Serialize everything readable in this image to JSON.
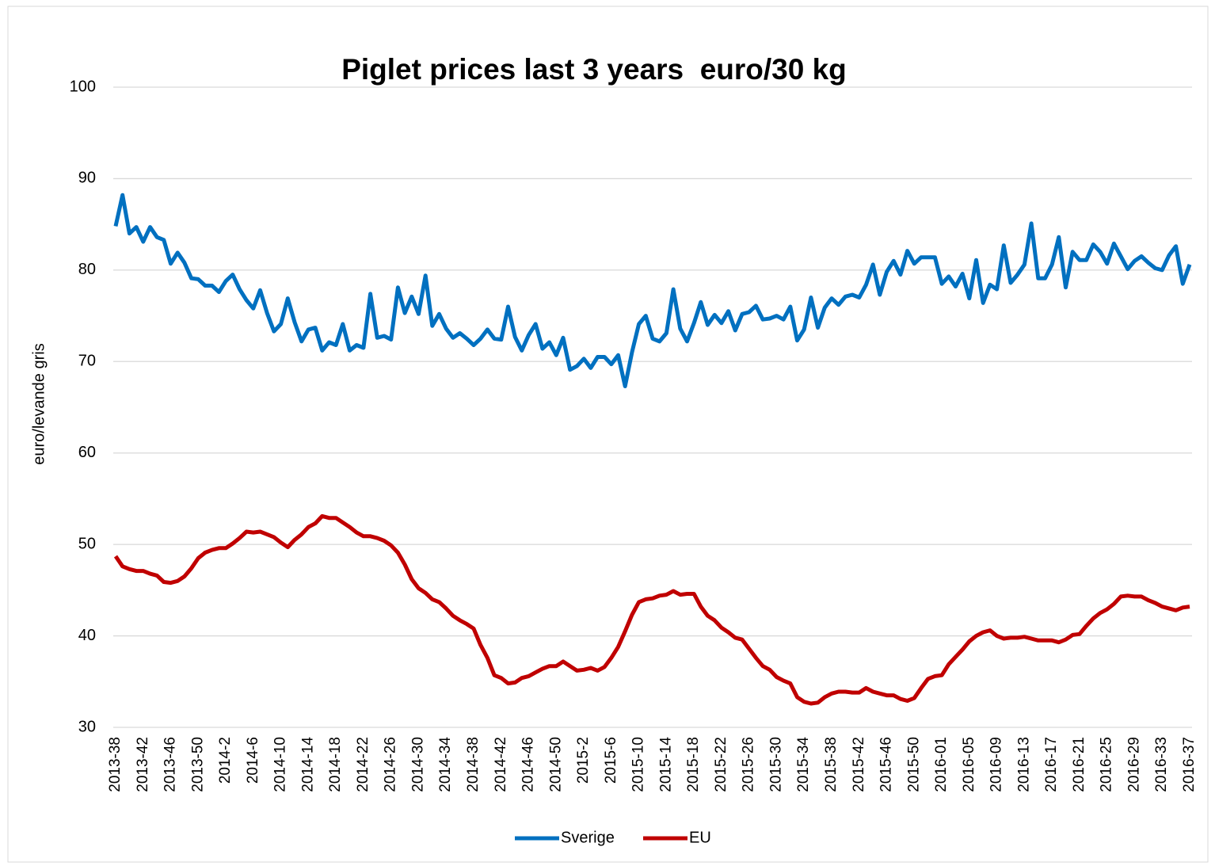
{
  "chart_data": {
    "type": "line",
    "title": "Piglet prices last 3 years  euro/30 kg",
    "y_label": "euro/levande gris",
    "categories": [
      "2013-38",
      null,
      null,
      null,
      "2013-42",
      null,
      null,
      null,
      "2013-46",
      null,
      null,
      null,
      "2013-50",
      null,
      null,
      null,
      "2014-2",
      null,
      null,
      null,
      "2014-6",
      null,
      null,
      null,
      "2014-10",
      null,
      null,
      null,
      "2014-14",
      null,
      null,
      null,
      "2014-18",
      null,
      null,
      null,
      "2014-22",
      null,
      null,
      null,
      "2014-26",
      null,
      null,
      null,
      "2014-30",
      null,
      null,
      null,
      "2014-34",
      null,
      null,
      null,
      "2014-38",
      null,
      null,
      null,
      "2014-42",
      null,
      null,
      null,
      "2014-46",
      null,
      null,
      null,
      "2014-50",
      null,
      null,
      null,
      "2015-2",
      null,
      null,
      null,
      "2015-6",
      null,
      null,
      null,
      "2015-10",
      null,
      null,
      null,
      "2015-14",
      null,
      null,
      null,
      "2015-18",
      null,
      null,
      null,
      "2015-22",
      null,
      null,
      null,
      "2015-26",
      null,
      null,
      null,
      "2015-30",
      null,
      null,
      null,
      "2015-34",
      null,
      null,
      null,
      "2015-38",
      null,
      null,
      null,
      "2015-42",
      null,
      null,
      null,
      "2015-46",
      null,
      null,
      null,
      "2015-50",
      null,
      null,
      null,
      "2016-01",
      null,
      null,
      null,
      "2016-05",
      null,
      null,
      null,
      "2016-09",
      null,
      null,
      null,
      "2016-13",
      null,
      null,
      null,
      "2016-17",
      null,
      null,
      null,
      "2016-21",
      null,
      null,
      null,
      "2016-25",
      null,
      null,
      null,
      "2016-29",
      null,
      null,
      null,
      "2016-33",
      null,
      null,
      null,
      "2016-37"
    ],
    "series": [
      {
        "name": "Sverige",
        "color": "#0070c0",
        "values": [
          84.8,
          88.2,
          84,
          84.7,
          83.1,
          84.7,
          83.6,
          83.3,
          80.7,
          81.9,
          80.8,
          79.1,
          79,
          78.3,
          78.3,
          77.6,
          78.8,
          79.5,
          77.9,
          76.7,
          75.8,
          77.8,
          75.3,
          73.3,
          74.1,
          76.9,
          74.3,
          72.2,
          73.5,
          73.7,
          71.2,
          72.1,
          71.8,
          74.1,
          71.2,
          71.8,
          71.5,
          77.4,
          72.6,
          72.8,
          72.4,
          78.1,
          75.3,
          77.1,
          75.2,
          79.4,
          73.9,
          75.2,
          73.6,
          72.6,
          73.1,
          72.5,
          71.8,
          72.5,
          73.5,
          72.5,
          72.4,
          76,
          72.7,
          71.2,
          72.9,
          74.1,
          71.4,
          72.1,
          70.7,
          72.6,
          69.1,
          69.5,
          70.3,
          69.3,
          70.5,
          70.5,
          69.7,
          70.7,
          67.3,
          71,
          74.1,
          75,
          72.5,
          72.2,
          73.1,
          77.9,
          73.6,
          72.2,
          74.2,
          76.5,
          74,
          75.1,
          74.2,
          75.5,
          73.4,
          75.2,
          75.4,
          76.1,
          74.6,
          74.7,
          75,
          74.6,
          76,
          72.3,
          73.5,
          77,
          73.7,
          75.9,
          76.9,
          76.2,
          77.1,
          77.3,
          77,
          78.4,
          80.6,
          77.3,
          79.8,
          81,
          79.5,
          82.1,
          80.7,
          81.4,
          81.4,
          81.4,
          78.5,
          79.3,
          78.2,
          79.6,
          76.9,
          81.1,
          76.4,
          78.4,
          77.9,
          82.7,
          78.6,
          79.5,
          80.6,
          85.1,
          79.1,
          79.1,
          80.6,
          83.6,
          78.1,
          82,
          81.1,
          81.1,
          82.8,
          82,
          80.7,
          82.9,
          81.5,
          80.1,
          81,
          81.5,
          80.8,
          80.2,
          80,
          81.6,
          82.6,
          78.5,
          80.6
        ]
      },
      {
        "name": "EU",
        "color": "#c00000",
        "values": [
          48.7,
          47.6,
          47.3,
          47.1,
          47.1,
          46.8,
          46.6,
          45.9,
          45.8,
          46,
          46.5,
          47.4,
          48.5,
          49.1,
          49.4,
          49.6,
          49.6,
          50.1,
          50.7,
          51.4,
          51.3,
          51.4,
          51.1,
          50.8,
          50.2,
          49.7,
          50.5,
          51.1,
          51.9,
          52.3,
          53.1,
          52.9,
          52.9,
          52.4,
          51.9,
          51.3,
          50.9,
          50.9,
          50.7,
          50.4,
          49.9,
          49.1,
          47.8,
          46.2,
          45.2,
          44.7,
          44,
          43.7,
          43,
          42.2,
          41.7,
          41.3,
          40.8,
          39,
          37.6,
          35.7,
          35.4,
          34.8,
          34.9,
          35.4,
          35.6,
          36,
          36.4,
          36.7,
          36.7,
          37.2,
          36.7,
          36.2,
          36.3,
          36.5,
          36.2,
          36.6,
          37.6,
          38.8,
          40.5,
          42.3,
          43.7,
          44,
          44.1,
          44.4,
          44.5,
          44.9,
          44.5,
          44.6,
          44.6,
          43.2,
          42.2,
          41.7,
          40.9,
          40.4,
          39.8,
          39.6,
          38.6,
          37.6,
          36.7,
          36.3,
          35.5,
          35.1,
          34.8,
          33.3,
          32.8,
          32.6,
          32.7,
          33.3,
          33.7,
          33.9,
          33.9,
          33.8,
          33.8,
          34.3,
          33.9,
          33.7,
          33.5,
          33.5,
          33.1,
          32.9,
          33.2,
          34.3,
          35.3,
          35.6,
          35.7,
          36.9,
          37.7,
          38.5,
          39.4,
          40,
          40.4,
          40.6,
          40,
          39.7,
          39.8,
          39.8,
          39.9,
          39.7,
          39.5,
          39.5,
          39.5,
          39.3,
          39.6,
          40.1,
          40.2,
          41.1,
          41.9,
          42.5,
          42.9,
          43.5,
          44.3,
          44.4,
          44.3,
          44.3,
          43.9,
          43.6,
          43.2,
          43,
          42.8,
          43.1,
          43.2
        ]
      }
    ],
    "ylim": [
      30,
      100
    ],
    "yticks": [
      30,
      40,
      50,
      60,
      70,
      80,
      90,
      100
    ],
    "grid": true,
    "legend": "bottom"
  }
}
